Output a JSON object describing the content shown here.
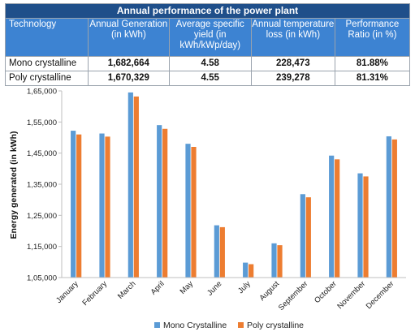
{
  "table": {
    "title": "Annual performance of the power plant",
    "headers": [
      "Technology",
      "Annual Generation (in kWh)",
      "Average specific yield (in kWh/kWp/day)",
      "Annual temperature loss (in kWh)",
      "Performance Ratio (in %)"
    ],
    "rows": [
      [
        "Mono crystalline",
        "1,682,664",
        "4.58",
        "228,473",
        "81.88%"
      ],
      [
        "Poly crystalline",
        "1,670,329",
        "4.55",
        "239,278",
        "81.31%"
      ]
    ],
    "colors": {
      "title_bg": "#1f4f8a",
      "header_bg": "#3d83d2"
    }
  },
  "chart_data": {
    "type": "bar",
    "ylabel": "Energy generated (in kWh)",
    "ylim": [
      105000,
      165000
    ],
    "yticks": [
      105000,
      115000,
      125000,
      135000,
      145000,
      155000,
      165000
    ],
    "ytick_labels": [
      "1,05,000",
      "1,15,000",
      "1,25,000",
      "1,35,000",
      "1,45,000",
      "1,55,000",
      "1,65,000"
    ],
    "grid": false,
    "legend_position": "bottom",
    "categories": [
      "January",
      "February",
      "March",
      "April",
      "May",
      "June",
      "July",
      "August",
      "September",
      "October",
      "November",
      "December"
    ],
    "series": [
      {
        "name": "Mono Crystalline",
        "color": "#5b9bd5",
        "values": [
          152200,
          151300,
          164500,
          154000,
          148000,
          121800,
          109800,
          116000,
          131800,
          144200,
          138500,
          150400
        ]
      },
      {
        "name": "Poly crystalline",
        "color": "#ed7d31",
        "values": [
          151000,
          150300,
          163200,
          152800,
          147000,
          121200,
          109300,
          115400,
          130800,
          143000,
          137500,
          149400
        ]
      }
    ]
  }
}
